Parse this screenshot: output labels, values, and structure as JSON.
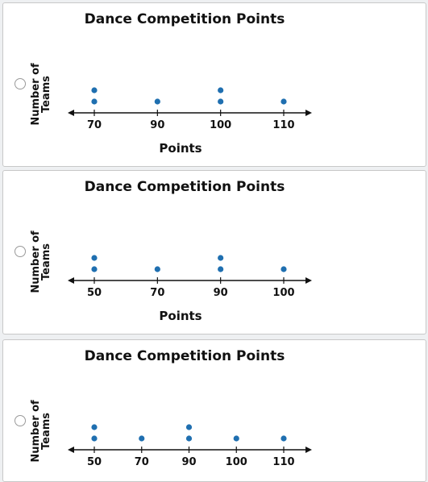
{
  "chart_data": [
    {
      "type": "dot",
      "title": "Dance Competition Points",
      "y_label": "Number of Teams",
      "x_label": "Points",
      "color": "#1f6fb0",
      "categories": [
        70,
        90,
        100,
        110
      ],
      "values": [
        2,
        1,
        2,
        1
      ]
    },
    {
      "type": "dot",
      "title": "Dance Competition Points",
      "y_label": "Number of Teams",
      "x_label": "Points",
      "color": "#1f6fb0",
      "categories": [
        50,
        70,
        90,
        100
      ],
      "values": [
        2,
        1,
        2,
        1
      ]
    },
    {
      "type": "dot",
      "title": "Dance Competition Points",
      "y_label": "Number of Teams",
      "color": "#1f6fb0",
      "categories": [
        50,
        70,
        90,
        100,
        110
      ],
      "values": [
        2,
        1,
        2,
        1,
        1
      ]
    }
  ]
}
